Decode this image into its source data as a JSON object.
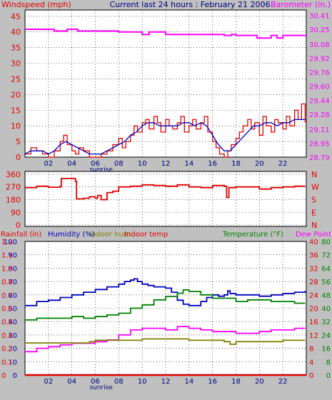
{
  "header": {
    "title": "Current last 24 hours : February 21 2006"
  },
  "colors": {
    "background": "#c0c0c0",
    "plot_bg": "#ffffff",
    "wind": "#e00000",
    "wind_avg": "#0000c0",
    "barometer": "#ff00ff",
    "direction": "#e00000",
    "humidity": "#0000c0",
    "indoor_humidity": "#808000",
    "indoor_temp": "#e00000",
    "temperature": "#008000",
    "dew_point": "#ff00ff",
    "rainfall": "#e00000",
    "grid": "#000000"
  },
  "chart_data": [
    {
      "type": "line",
      "id": "wind-baro",
      "x_ticks": [
        "02",
        "04",
        "06",
        "08",
        "10",
        "12",
        "14",
        "16",
        "18",
        "20",
        "22"
      ],
      "x_sublabel": "sunrise",
      "xlim": [
        0,
        24
      ],
      "left_axis": {
        "label": "Windspeed (mph)",
        "ylim": [
          0,
          47
        ],
        "ticks": [
          "0",
          "5",
          "10",
          "15",
          "20",
          "25",
          "30",
          "35",
          "40",
          "45"
        ]
      },
      "right_axis": {
        "label": "Barometer (in.)",
        "ylim": [
          28.79,
          30.47
        ],
        "ticks": [
          "28.79",
          "28.95",
          "29.11",
          "29.28",
          "29.44",
          "29.60",
          "29.76",
          "29.92",
          "30.08",
          "30.25",
          "30.41"
        ]
      },
      "series": [
        {
          "name": "Windspeed",
          "axis": "left",
          "color": "#e00000",
          "x": [
            0.0,
            0.5,
            1.0,
            1.5,
            2.0,
            2.5,
            3.0,
            3.3,
            3.6,
            4.0,
            4.3,
            4.6,
            5.0,
            5.5,
            6.0,
            6.5,
            7.0,
            7.5,
            8.0,
            8.3,
            8.6,
            9.0,
            9.3,
            9.6,
            10.0,
            10.3,
            10.6,
            11.0,
            11.3,
            11.6,
            12.0,
            12.3,
            12.6,
            13.0,
            13.3,
            13.6,
            14.0,
            14.3,
            14.6,
            15.0,
            15.3,
            15.6,
            16.0,
            16.3,
            16.6,
            17.0,
            17.3,
            17.6,
            18.0,
            18.3,
            18.6,
            19.0,
            19.3,
            19.6,
            20.0,
            20.3,
            20.6,
            21.0,
            21.3,
            21.6,
            22.0,
            22.3,
            22.6,
            23.0,
            23.3,
            23.6,
            23.9
          ],
          "values": [
            1,
            3,
            2,
            1,
            0,
            2,
            5,
            7,
            4,
            2,
            1,
            3,
            2,
            0,
            0,
            1,
            2,
            4,
            6,
            3,
            5,
            7,
            10,
            8,
            11,
            12,
            9,
            13,
            11,
            8,
            12,
            10,
            9,
            11,
            13,
            8,
            10,
            12,
            9,
            11,
            13,
            8,
            5,
            3,
            1,
            0,
            2,
            4,
            6,
            8,
            10,
            12,
            9,
            11,
            7,
            13,
            10,
            8,
            12,
            11,
            9,
            13,
            10,
            15,
            12,
            17,
            11
          ]
        },
        {
          "name": "Windspeed average",
          "axis": "left",
          "color": "#0000c0",
          "x": [
            0.0,
            0.5,
            1.0,
            1.5,
            2.0,
            2.5,
            3.0,
            3.5,
            4.0,
            4.5,
            5.0,
            5.5,
            6.0,
            6.5,
            7.0,
            7.5,
            8.0,
            8.5,
            9.0,
            9.5,
            10.0,
            10.5,
            11.0,
            11.5,
            12.0,
            12.5,
            13.0,
            13.5,
            14.0,
            14.5,
            15.0,
            15.5,
            16.0,
            16.5,
            17.0,
            17.5,
            18.0,
            18.5,
            19.0,
            19.5,
            20.0,
            20.5,
            21.0,
            21.5,
            22.0,
            22.5,
            23.0,
            23.5,
            23.9
          ],
          "values": [
            1,
            2,
            2,
            2,
            1,
            2,
            4,
            5,
            4,
            3,
            2,
            1,
            1,
            1,
            2,
            3,
            4,
            5,
            7,
            8,
            10,
            11,
            11,
            10,
            10,
            10,
            10,
            11,
            11,
            10,
            11,
            10,
            7,
            4,
            2,
            2,
            4,
            6,
            8,
            10,
            10,
            11,
            11,
            10,
            11,
            11,
            12,
            12,
            12
          ]
        },
        {
          "name": "Barometer",
          "axis": "right",
          "color": "#ff00ff",
          "x": [
            0.0,
            2.0,
            2.5,
            3.3,
            3.6,
            4.2,
            4.5,
            6.0,
            8.0,
            9.8,
            10.0,
            10.5,
            10.6,
            11.8,
            12.0,
            14.0,
            16.0,
            17.0,
            17.6,
            18.0,
            19.5,
            19.8,
            20.5,
            21.0,
            21.5,
            22.0,
            24.0
          ],
          "values": [
            30.25,
            30.25,
            30.23,
            30.23,
            30.25,
            30.25,
            30.23,
            30.23,
            30.22,
            30.22,
            30.19,
            30.19,
            30.22,
            30.22,
            30.19,
            30.19,
            30.19,
            30.18,
            30.19,
            30.18,
            30.18,
            30.15,
            30.15,
            30.18,
            30.15,
            30.18,
            30.18
          ]
        }
      ]
    },
    {
      "type": "line",
      "id": "direction",
      "xlim": [
        0,
        24
      ],
      "left_axis": {
        "ylim": [
          -10,
          380
        ],
        "ticks": [
          "0",
          "90",
          "180",
          "270",
          "360"
        ]
      },
      "right_labels": [
        "N",
        "W",
        "S",
        "E",
        "N"
      ],
      "series": [
        {
          "name": "Wind direction",
          "color": "#e00000",
          "x": [
            0.0,
            1.0,
            2.0,
            3.0,
            3.1,
            4.0,
            4.3,
            4.4,
            5.0,
            5.5,
            6.0,
            6.2,
            6.5,
            7.0,
            7.5,
            8.0,
            9.0,
            10.0,
            11.0,
            12.0,
            13.0,
            14.0,
            15.0,
            16.0,
            17.0,
            17.2,
            17.4,
            18.0,
            19.0,
            20.0,
            21.0,
            22.0,
            23.0,
            23.9
          ],
          "values": [
            265,
            275,
            268,
            275,
            330,
            330,
            310,
            185,
            190,
            200,
            190,
            210,
            180,
            230,
            240,
            270,
            275,
            285,
            280,
            275,
            285,
            270,
            265,
            280,
            275,
            195,
            265,
            270,
            270,
            255,
            265,
            270,
            275,
            275
          ]
        }
      ]
    },
    {
      "type": "line",
      "id": "humidity-temp",
      "x_ticks": [
        "02",
        "04",
        "06",
        "08",
        "10",
        "12",
        "14",
        "16",
        "18",
        "20",
        "22"
      ],
      "x_sublabel": "sunrise",
      "xlim": [
        0,
        24
      ],
      "labels": {
        "rainfall": "Rainfall (in)",
        "humidity": "Humidity (%)",
        "indoor_humidity": "Indoor hum",
        "indoor_temp": "Indoor temp",
        "temperature": "Temperature (°F)",
        "dew_point": "Dew Point"
      },
      "axes": {
        "humidity": {
          "ylim": [
            0,
            100
          ],
          "ticks": [
            "0",
            "10",
            "20",
            "30",
            "40",
            "50",
            "60",
            "70",
            "80",
            "90",
            "100"
          ]
        },
        "rainfall": {
          "ylim": [
            0,
            1.2
          ],
          "ticks": [
            "0",
            "0.1",
            "0.2",
            "0.4",
            "0.5",
            "0.6",
            "0.7",
            "0.8",
            "1.0",
            "1.1",
            "1.2"
          ]
        },
        "indoor_temp": {
          "ylim": [
            0,
            40
          ],
          "ticks": [
            "0",
            "4",
            "8",
            "12",
            "16",
            "20",
            "24",
            "28",
            "32",
            "36",
            "40"
          ]
        },
        "temperature": {
          "ylim": [
            0,
            80
          ],
          "ticks": [
            "0",
            "8",
            "16",
            "24",
            "32",
            "40",
            "48",
            "56",
            "64",
            "72",
            "80"
          ]
        }
      },
      "series": [
        {
          "name": "Humidity",
          "axis": "humidity",
          "color": "#0000c0",
          "x": [
            0.0,
            1.0,
            2.0,
            3.0,
            4.0,
            5.0,
            6.0,
            7.0,
            8.0,
            8.5,
            9.0,
            9.3,
            9.6,
            10.0,
            10.5,
            11.0,
            12.0,
            12.5,
            13.0,
            13.5,
            14.0,
            15.0,
            15.5,
            16.0,
            16.5,
            17.0,
            17.3,
            17.5,
            18.0,
            19.0,
            20.0,
            21.0,
            22.0,
            23.0,
            23.9
          ],
          "values": [
            52,
            55,
            56,
            58,
            60,
            62,
            64,
            66,
            68,
            70,
            71,
            72,
            70,
            68,
            67,
            66,
            65,
            62,
            56,
            53,
            52,
            55,
            58,
            60,
            59,
            60,
            63,
            61,
            60,
            60,
            59,
            60,
            61,
            62,
            63
          ]
        },
        {
          "name": "Temperature",
          "axis": "temperature",
          "color": "#008000",
          "x": [
            0.0,
            1.0,
            2.0,
            3.0,
            4.0,
            5.0,
            6.0,
            7.0,
            8.0,
            9.0,
            10.0,
            11.0,
            12.0,
            13.0,
            13.5,
            14.0,
            15.0,
            16.0,
            17.0,
            18.0,
            19.0,
            20.0,
            21.0,
            22.0,
            23.0,
            23.9
          ],
          "values": [
            33,
            34,
            34,
            34,
            35,
            34,
            35,
            36,
            37,
            40,
            42,
            45,
            47,
            49,
            51,
            50,
            48,
            46,
            46,
            44,
            45,
            45,
            44,
            44,
            43,
            43
          ]
        },
        {
          "name": "Dew Point",
          "axis": "temperature",
          "color": "#ff00ff",
          "x": [
            0.0,
            1.0,
            2.0,
            3.0,
            4.0,
            5.0,
            6.0,
            7.0,
            8.0,
            9.0,
            10.0,
            11.0,
            12.0,
            13.0,
            14.0,
            15.0,
            16.0,
            17.0,
            18.0,
            19.0,
            20.0,
            21.0,
            22.0,
            23.0,
            23.9
          ],
          "values": [
            14,
            16,
            17,
            18,
            19,
            19,
            20,
            21,
            24,
            27,
            28,
            28,
            27,
            29,
            28,
            27,
            26,
            26,
            25,
            25,
            26,
            27,
            27,
            28,
            28
          ]
        },
        {
          "name": "Indoor hum",
          "axis": "humidity",
          "color": "#808000",
          "x": [
            0.0,
            2.0,
            4.0,
            5.5,
            6.0,
            8.0,
            10.0,
            12.0,
            14.0,
            16.0,
            17.0,
            17.5,
            18.0,
            20.0,
            22.0,
            23.9
          ],
          "values": [
            24,
            24,
            24,
            25,
            26,
            26,
            27,
            27,
            26,
            26,
            25,
            23,
            25,
            25,
            26,
            26
          ]
        },
        {
          "name": "Rainfall",
          "axis": "rainfall",
          "color": "#e00000",
          "x": [
            0.0,
            24.0
          ],
          "values": [
            0.0,
            0.0
          ]
        }
      ]
    }
  ]
}
